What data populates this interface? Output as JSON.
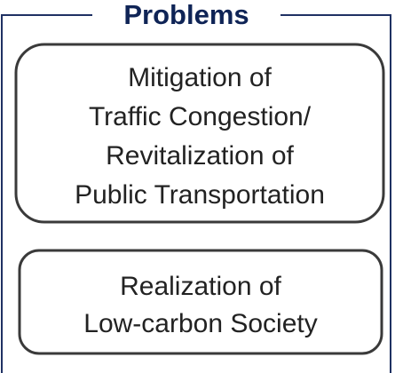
{
  "title": "Problems",
  "boxes": [
    {
      "lines": [
        "Mitigation of",
        "Traffic Congestion/",
        "Revitalization of",
        "Public Transportation"
      ]
    },
    {
      "lines": [
        "Realization of",
        "Low-carbon Society"
      ]
    }
  ]
}
